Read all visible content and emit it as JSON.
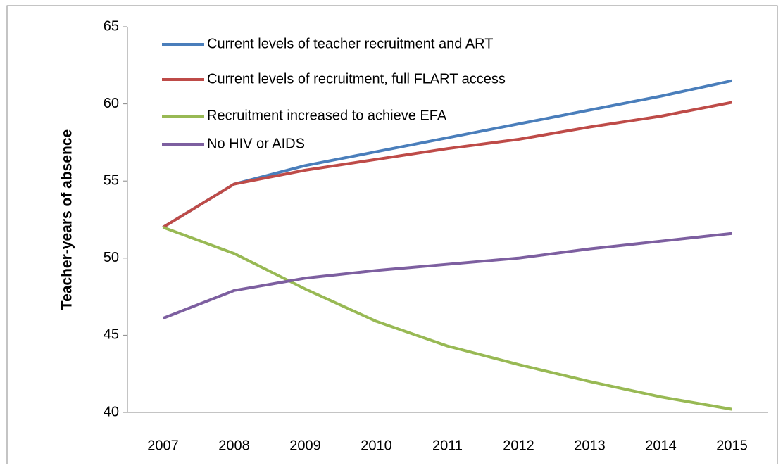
{
  "chart_data": {
    "type": "line",
    "y_label": "Teacher-years of absence",
    "categories": [
      "2007",
      "2008",
      "2009",
      "2010",
      "2011",
      "2012",
      "2013",
      "2014",
      "2015"
    ],
    "series": [
      {
        "name": "Current levels of teacher recruitment and ART",
        "color": "#4a7ebb",
        "values": [
          52,
          54.8,
          56.0,
          56.9,
          57.8,
          58.7,
          59.6,
          60.5,
          61.5
        ]
      },
      {
        "name": "Current levels of recruitment, full FLART access",
        "color": "#be4b48",
        "values": [
          52,
          54.8,
          55.7,
          56.4,
          57.1,
          57.7,
          58.5,
          59.2,
          60.1
        ]
      },
      {
        "name": "Recruitment increased to achieve EFA",
        "color": "#98b954",
        "values": [
          52,
          50.3,
          48.0,
          45.9,
          44.3,
          43.1,
          42.0,
          41.0,
          40.2
        ]
      },
      {
        "name": "No HIV or AIDS",
        "color": "#7d5fa0",
        "values": [
          46.1,
          47.9,
          48.7,
          49.2,
          49.6,
          50.0,
          50.6,
          51.1,
          51.6
        ]
      }
    ],
    "ylim": [
      40,
      65
    ],
    "yticks": [
      40,
      45,
      50,
      55,
      60,
      65
    ],
    "grid": false,
    "legend": "upper left"
  }
}
